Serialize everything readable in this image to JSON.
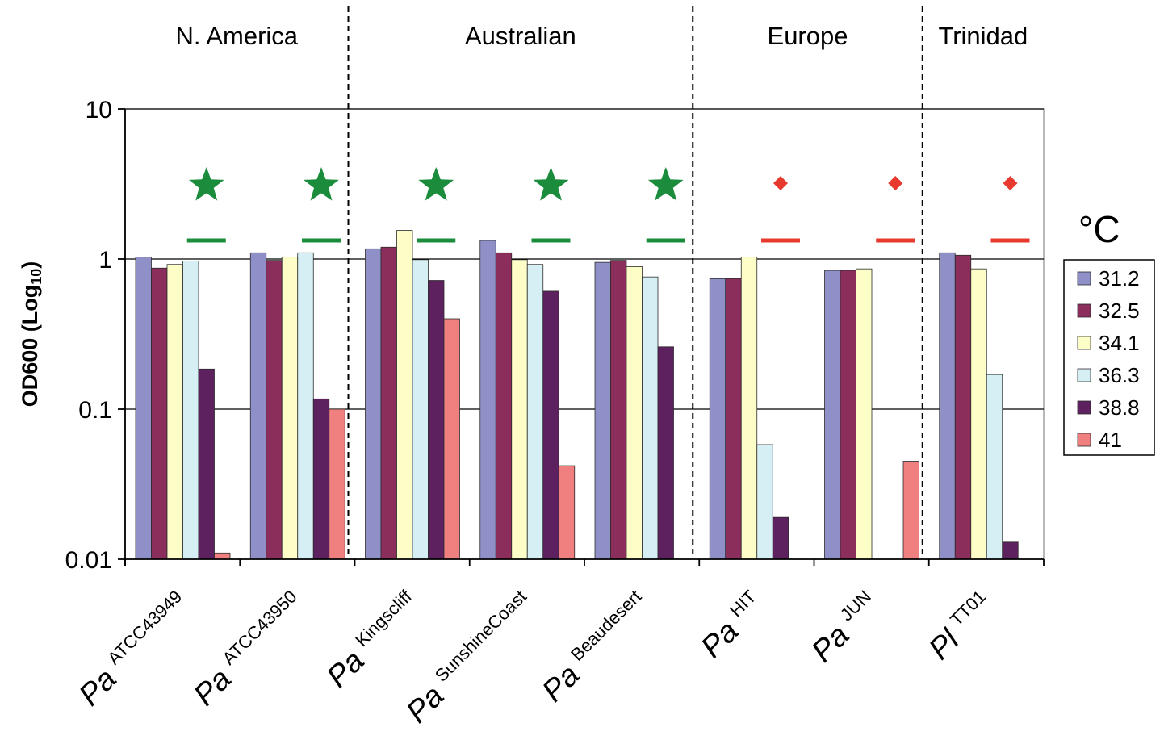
{
  "chart_data": {
    "type": "bar",
    "y_scale": "log",
    "ylim": [
      0.01,
      10
    ],
    "yticks": [
      "10",
      "1",
      "0.1",
      "0.01"
    ],
    "ylabel_main": "OD600 (Log",
    "ylabel_sub": "10",
    "ylabel_close": ")",
    "grid": true,
    "legend_title": "°C",
    "legend_position": "right",
    "region_labels": [
      "N. America",
      "Australian",
      "Europe",
      "Trinidad"
    ],
    "region_dividers_after_category": [
      2,
      5,
      7
    ],
    "categories": [
      {
        "species": "Pa",
        "strain": "ATCC43949"
      },
      {
        "species": "Pa",
        "strain": "ATCC43950"
      },
      {
        "species": "Pa",
        "strain": "Kingscliff"
      },
      {
        "species": "Pa",
        "strain": "SunshineCoast"
      },
      {
        "species": "Pa",
        "strain": "Beaudesert"
      },
      {
        "species": "Pa",
        "strain": "HIT"
      },
      {
        "species": "Pa",
        "strain": "JUN"
      },
      {
        "species": "Pl",
        "strain": "TT01"
      }
    ],
    "series": [
      {
        "name": "31.2",
        "color": "#9090c8",
        "values": [
          1.03,
          1.1,
          1.17,
          1.33,
          0.95,
          0.74,
          0.84,
          1.1
        ]
      },
      {
        "name": "32.5",
        "color": "#8b2e5c",
        "values": [
          0.87,
          0.98,
          1.2,
          1.1,
          0.98,
          0.74,
          0.84,
          1.06
        ]
      },
      {
        "name": "34.1",
        "color": "#fdfdc8",
        "values": [
          0.92,
          1.03,
          1.55,
          0.99,
          0.89,
          1.03,
          0.86,
          0.86
        ]
      },
      {
        "name": "36.3",
        "color": "#d6eff4",
        "values": [
          0.97,
          1.1,
          0.99,
          0.92,
          0.76,
          0.058,
          null,
          0.17
        ]
      },
      {
        "name": "38.8",
        "color": "#5e2160",
        "values": [
          0.185,
          0.117,
          0.72,
          0.61,
          0.26,
          0.019,
          null,
          0.013
        ]
      },
      {
        "name": "41",
        "color": "#f08080",
        "values": [
          0.011,
          0.1,
          0.4,
          0.042,
          null,
          null,
          0.045,
          null
        ]
      }
    ],
    "markers": [
      {
        "category": 0,
        "symbol": "star",
        "color": "#1a8c3c"
      },
      {
        "category": 1,
        "symbol": "star",
        "color": "#1a8c3c"
      },
      {
        "category": 2,
        "symbol": "star",
        "color": "#1a8c3c"
      },
      {
        "category": 3,
        "symbol": "star",
        "color": "#1a8c3c"
      },
      {
        "category": 4,
        "symbol": "star",
        "color": "#1a8c3c"
      },
      {
        "category": 5,
        "symbol": "diamond",
        "color": "#e8392e"
      },
      {
        "category": 6,
        "symbol": "diamond",
        "color": "#e8392e"
      },
      {
        "category": 7,
        "symbol": "diamond",
        "color": "#e8392e"
      }
    ]
  }
}
